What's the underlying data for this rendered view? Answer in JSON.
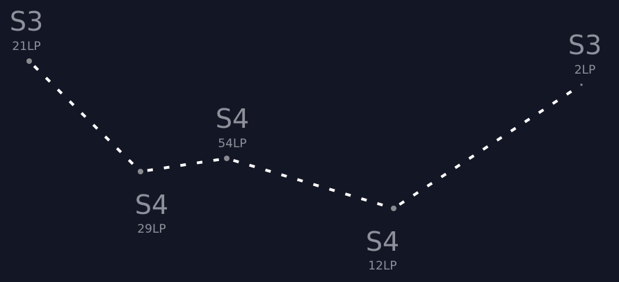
{
  "chart_data": {
    "type": "line",
    "style": "dashed-line-with-point-markers",
    "colors": {
      "background": "#131625",
      "line": "#ffffff",
      "marker": "#8a8b91",
      "text": "#8e919b"
    },
    "points": [
      {
        "rank": "S3",
        "lp": "21LP"
      },
      {
        "rank": "S4",
        "lp": "29LP"
      },
      {
        "rank": "S4",
        "lp": "54LP"
      },
      {
        "rank": "S4",
        "lp": "12LP"
      },
      {
        "rank": "S3",
        "lp": "2LP"
      }
    ]
  }
}
